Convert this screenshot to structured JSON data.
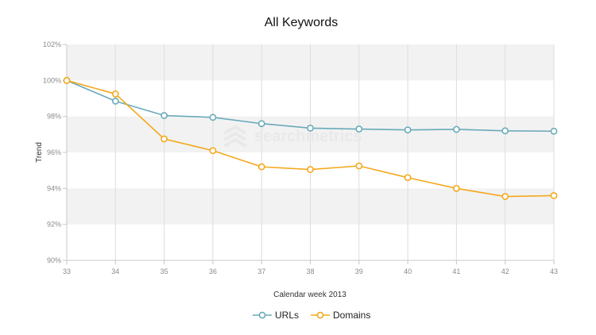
{
  "chart_data": {
    "type": "line",
    "title": "All Keywords",
    "xlabel": "Calendar week 2013",
    "ylabel": "Trend",
    "x": [
      33,
      34,
      35,
      36,
      37,
      38,
      39,
      40,
      41,
      42,
      43
    ],
    "xlim": [
      33,
      43
    ],
    "ylim": [
      90,
      102
    ],
    "yticks": [
      90,
      92,
      94,
      96,
      98,
      100,
      102
    ],
    "ytick_labels": [
      "90%",
      "92%",
      "94%",
      "96%",
      "98%",
      "100%",
      "102%"
    ],
    "grid": "alternating horizontal bands, vertical gridlines",
    "legend_position": "bottom",
    "series": [
      {
        "name": "URLs",
        "color": "#6aaabb",
        "values": [
          100.0,
          98.85,
          98.05,
          97.95,
          97.6,
          97.35,
          97.3,
          97.25,
          97.28,
          97.2,
          97.18
        ]
      },
      {
        "name": "Domains",
        "color": "#f5a81d",
        "values": [
          100.0,
          99.25,
          96.75,
          96.1,
          95.2,
          95.05,
          95.25,
          94.6,
          94.0,
          93.55,
          93.6
        ]
      }
    ]
  },
  "watermark": {
    "text": "searchmetrics",
    "icon": "searchmetrics-logo-icon"
  }
}
